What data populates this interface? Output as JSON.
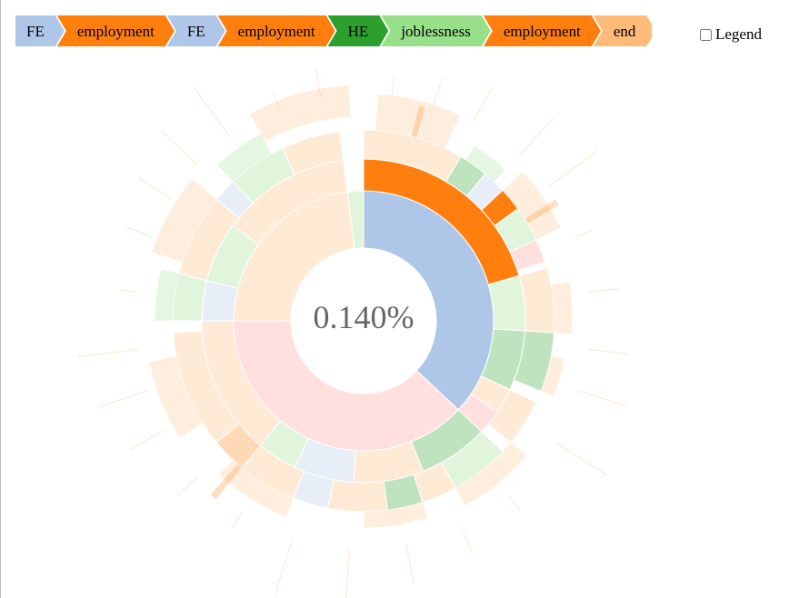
{
  "breadcrumb": {
    "items": [
      {
        "label": "FE",
        "color": "#aec7e8"
      },
      {
        "label": "employment",
        "color": "#ff7f0e"
      },
      {
        "label": "FE",
        "color": "#aec7e8"
      },
      {
        "label": "employment",
        "color": "#ff7f0e"
      },
      {
        "label": "HE",
        "color": "#2ca02c"
      },
      {
        "label": "joblessness",
        "color": "#98df8a"
      },
      {
        "label": "employment",
        "color": "#ff7f0e"
      },
      {
        "label": "end",
        "color": "#ffbb78"
      }
    ],
    "percentage": "0.140%"
  },
  "legend_toggle": {
    "label": "Legend",
    "checked": false
  },
  "center": {
    "percentage": "0.140%"
  },
  "colors": {
    "FE": "#aec7e8",
    "employment": "#ff7f0e",
    "HE": "#2ca02c",
    "joblessness": "#98df8a",
    "end": "#ffbb78",
    "school": "#ff9896"
  },
  "chart_data": {
    "type": "sunburst",
    "highlighted_sequence": [
      "FE",
      "employment",
      "FE",
      "employment",
      "HE",
      "joblessness",
      "employment",
      "end"
    ],
    "highlighted_share_percent": 0.14,
    "rings": [
      [
        {
          "name": "FE",
          "color": "#aec7e8",
          "start": 0.0,
          "end": 0.37
        },
        {
          "name": "school",
          "color": "#ff9896",
          "start": 0.37,
          "end": 0.75
        },
        {
          "name": "end",
          "color": "#ffbb78",
          "start": 0.75,
          "end": 0.98
        },
        {
          "name": "joblessness",
          "color": "#98df8a",
          "start": 0.98,
          "end": 1.0
        }
      ],
      [
        {
          "name": "employment",
          "color": "#ff7f0e",
          "start": 0.0,
          "end": 0.205
        },
        {
          "name": "joblessness",
          "color": "#98df8a",
          "start": 0.205,
          "end": 0.26
        },
        {
          "name": "HE",
          "color": "#2ca02c",
          "start": 0.26,
          "end": 0.32
        },
        {
          "name": "end",
          "color": "#ffbb78",
          "start": 0.32,
          "end": 0.345
        },
        {
          "name": "school",
          "color": "#ff9896",
          "start": 0.345,
          "end": 0.37
        },
        {
          "name": "HE",
          "color": "#2ca02c",
          "start": 0.37,
          "end": 0.44
        },
        {
          "name": "end",
          "color": "#ffbb78",
          "start": 0.44,
          "end": 0.51
        },
        {
          "name": "FE",
          "color": "#aec7e8",
          "start": 0.51,
          "end": 0.57
        },
        {
          "name": "joblessness",
          "color": "#98df8a",
          "start": 0.57,
          "end": 0.61
        },
        {
          "name": "end",
          "color": "#ffbb78",
          "start": 0.61,
          "end": 0.75
        },
        {
          "name": "FE",
          "color": "#aec7e8",
          "start": 0.75,
          "end": 0.79
        },
        {
          "name": "joblessness",
          "color": "#98df8a",
          "start": 0.79,
          "end": 0.85
        },
        {
          "name": "end",
          "color": "#ffbb78",
          "start": 0.85,
          "end": 0.98
        }
      ],
      [
        {
          "name": "end",
          "color": "#ffbb78",
          "start": 0.0,
          "end": 0.085
        },
        {
          "name": "HE",
          "color": "#2ca02c",
          "start": 0.085,
          "end": 0.11
        },
        {
          "name": "FE",
          "color": "#aec7e8",
          "start": 0.11,
          "end": 0.13
        },
        {
          "name": "employment",
          "color": "#ff7f0e",
          "start": 0.13,
          "end": 0.15
        },
        {
          "name": "joblessness",
          "color": "#98df8a",
          "start": 0.15,
          "end": 0.18
        },
        {
          "name": "school",
          "color": "#ff9896",
          "start": 0.18,
          "end": 0.2
        },
        {
          "name": "end",
          "color": "#ffbb78",
          "start": 0.205,
          "end": 0.26
        },
        {
          "name": "HE",
          "color": "#2ca02c",
          "start": 0.26,
          "end": 0.31
        },
        {
          "name": "end",
          "color": "#ffbb78",
          "start": 0.32,
          "end": 0.36
        },
        {
          "name": "joblessness",
          "color": "#98df8a",
          "start": 0.37,
          "end": 0.42
        },
        {
          "name": "end",
          "color": "#ffbb78",
          "start": 0.42,
          "end": 0.45
        },
        {
          "name": "HE",
          "color": "#2ca02c",
          "start": 0.45,
          "end": 0.48
        },
        {
          "name": "end",
          "color": "#ffbb78",
          "start": 0.48,
          "end": 0.53
        },
        {
          "name": "FE",
          "color": "#aec7e8",
          "start": 0.53,
          "end": 0.56
        },
        {
          "name": "end",
          "color": "#ffbb78",
          "start": 0.56,
          "end": 0.61
        },
        {
          "name": "employment",
          "color": "#ff7f0e",
          "start": 0.61,
          "end": 0.64
        },
        {
          "name": "end",
          "color": "#ffbb78",
          "start": 0.64,
          "end": 0.74
        },
        {
          "name": "joblessness",
          "color": "#98df8a",
          "start": 0.75,
          "end": 0.79
        },
        {
          "name": "end",
          "color": "#ffbb78",
          "start": 0.79,
          "end": 0.86
        },
        {
          "name": "FE",
          "color": "#aec7e8",
          "start": 0.86,
          "end": 0.88
        },
        {
          "name": "joblessness",
          "color": "#98df8a",
          "start": 0.88,
          "end": 0.93
        },
        {
          "name": "end",
          "color": "#ffbb78",
          "start": 0.93,
          "end": 0.98
        }
      ]
    ]
  }
}
